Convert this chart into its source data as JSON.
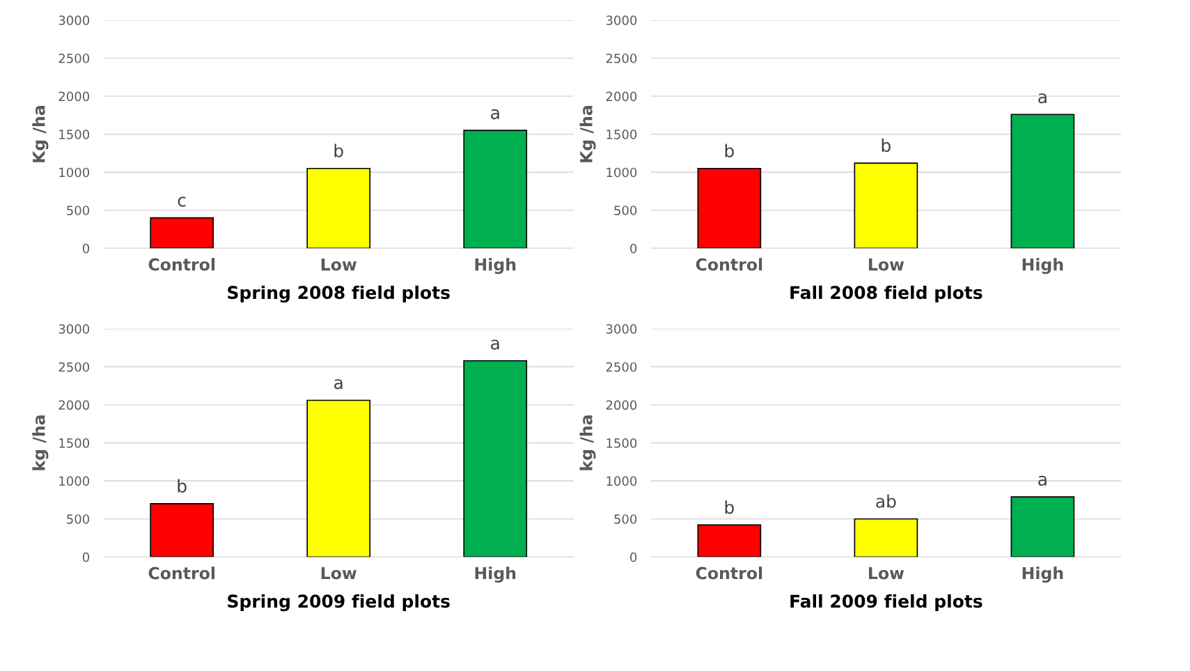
{
  "chart_data": [
    {
      "type": "bar",
      "xlabel": "Spring 2008 field plots",
      "ylabel": "Kg /ha",
      "categories": [
        "Control",
        "Low",
        "High"
      ],
      "values": [
        400,
        1050,
        1550
      ],
      "colors": [
        "#ff0000",
        "#ffff00",
        "#00b050"
      ],
      "ylim": [
        0,
        3000
      ],
      "yticks": [
        0,
        500,
        1000,
        1500,
        2000,
        2500,
        3000
      ],
      "grid": "y",
      "annotations": [
        {
          "text": "c",
          "x": "Control",
          "y": 400
        },
        {
          "text": "b",
          "x": "Low",
          "y": 1050
        },
        {
          "text": "a",
          "x": "High",
          "y": 1550
        }
      ]
    },
    {
      "type": "bar",
      "xlabel": "Fall 2008 field plots",
      "ylabel": "Kg /ha",
      "categories": [
        "Control",
        "Low",
        "High"
      ],
      "values": [
        1050,
        1120,
        1760
      ],
      "colors": [
        "#ff0000",
        "#ffff00",
        "#00b050"
      ],
      "ylim": [
        0,
        3000
      ],
      "yticks": [
        0,
        500,
        1000,
        1500,
        2000,
        2500,
        3000
      ],
      "grid": "y",
      "annotations": [
        {
          "text": "b",
          "x": "Control",
          "y": 1050
        },
        {
          "text": "b",
          "x": "Low",
          "y": 1120
        },
        {
          "text": "a",
          "x": "High",
          "y": 1760
        }
      ]
    },
    {
      "type": "bar",
      "xlabel": "Spring 2009 field plots",
      "ylabel": "kg /ha",
      "categories": [
        "Control",
        "Low",
        "High"
      ],
      "values": [
        700,
        2060,
        2580
      ],
      "colors": [
        "#ff0000",
        "#ffff00",
        "#00b050"
      ],
      "ylim": [
        0,
        3000
      ],
      "yticks": [
        0,
        500,
        1000,
        1500,
        2000,
        2500,
        3000
      ],
      "grid": "y",
      "annotations": [
        {
          "text": "b",
          "x": "Control",
          "y": 700
        },
        {
          "text": "a",
          "x": "Low",
          "y": 2060
        },
        {
          "text": "a",
          "x": "High",
          "y": 2580
        }
      ]
    },
    {
      "type": "bar",
      "xlabel": "Fall 2009 field plots",
      "ylabel": "kg /ha",
      "categories": [
        "Control",
        "Low",
        "High"
      ],
      "values": [
        420,
        500,
        790
      ],
      "colors": [
        "#ff0000",
        "#ffff00",
        "#00b050"
      ],
      "ylim": [
        0,
        3000
      ],
      "yticks": [
        0,
        500,
        1000,
        1500,
        2000,
        2500,
        3000
      ],
      "grid": "y",
      "annotations": [
        {
          "text": "b",
          "x": "Control",
          "y": 420
        },
        {
          "text": "ab",
          "x": "Low",
          "y": 500
        },
        {
          "text": "a",
          "x": "High",
          "y": 790
        }
      ]
    }
  ]
}
